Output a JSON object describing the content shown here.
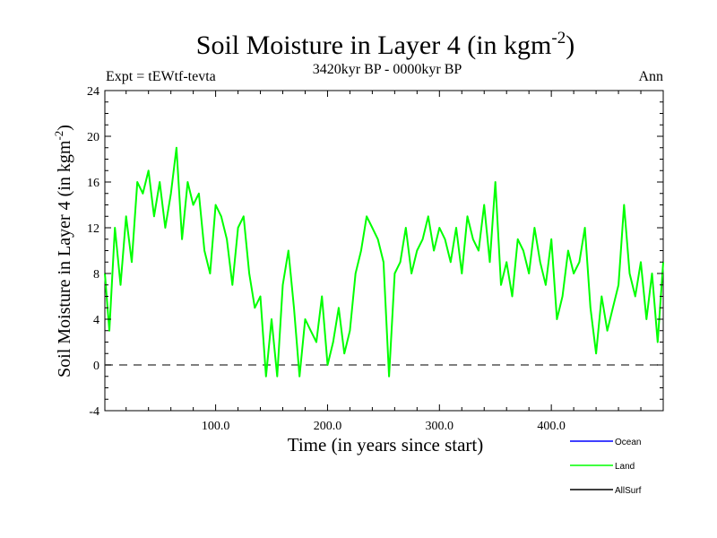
{
  "chart_data": {
    "type": "line",
    "title": "Soil Moisture in Layer 4 (in kgm",
    "title_superscript": "-2",
    "title_suffix": ")",
    "subtitle": "3420kyr BP - 0000kyr BP",
    "left_label": "Expt = tEWtf-tevta",
    "right_label": "Ann",
    "xlabel": "Time (in years since start)",
    "ylabel": "Soil Moisture in Layer 4 (in kgm",
    "ylabel_superscript": "-2",
    "ylabel_suffix": ")",
    "xlim": [
      1,
      500
    ],
    "ylim": [
      -4,
      24
    ],
    "xticks": [
      100,
      200,
      300,
      400
    ],
    "xtick_labels": [
      "100.0",
      "200.0",
      "300.0",
      "400.0"
    ],
    "yticks": [
      -4,
      0,
      4,
      8,
      12,
      16,
      20,
      24
    ],
    "ytick_labels": [
      "-4",
      "0",
      "4",
      "8",
      "12",
      "16",
      "20",
      "24"
    ],
    "reference_line": 0,
    "legend": [
      {
        "name": "Ocean",
        "color": "#0000ff"
      },
      {
        "name": "Land",
        "color": "#00ff00"
      },
      {
        "name": "AllSurf",
        "color": "#000000"
      }
    ],
    "series": [
      {
        "name": "Land",
        "color": "#00ff00",
        "x": [
          1,
          5,
          10,
          15,
          20,
          25,
          30,
          35,
          40,
          45,
          50,
          55,
          60,
          65,
          70,
          75,
          80,
          85,
          90,
          95,
          100,
          105,
          110,
          115,
          120,
          125,
          130,
          135,
          140,
          145,
          150,
          155,
          160,
          165,
          170,
          175,
          180,
          185,
          190,
          195,
          200,
          205,
          210,
          215,
          220,
          225,
          230,
          235,
          240,
          245,
          250,
          255,
          260,
          265,
          270,
          275,
          280,
          285,
          290,
          295,
          300,
          305,
          310,
          315,
          320,
          325,
          330,
          335,
          340,
          345,
          350,
          355,
          360,
          365,
          370,
          375,
          380,
          385,
          390,
          395,
          400,
          405,
          410,
          415,
          420,
          425,
          430,
          435,
          440,
          445,
          450,
          455,
          460,
          465,
          470,
          475,
          480,
          485,
          490,
          495,
          500
        ],
        "values": [
          8,
          3,
          12,
          7,
          13,
          9,
          16,
          15,
          17,
          13,
          16,
          12,
          15,
          19,
          11,
          16,
          14,
          15,
          10,
          8,
          14,
          13,
          11,
          7,
          12,
          13,
          8,
          5,
          6,
          -1,
          4,
          -1,
          7,
          10,
          5,
          -1,
          4,
          3,
          2,
          6,
          0,
          2,
          5,
          1,
          3,
          8,
          10,
          13,
          12,
          11,
          9,
          -1,
          8,
          9,
          12,
          8,
          10,
          11,
          13,
          10,
          12,
          11,
          9,
          12,
          8,
          13,
          11,
          10,
          14,
          9,
          16,
          7,
          9,
          6,
          11,
          10,
          8,
          12,
          9,
          7,
          11,
          4,
          6,
          10,
          8,
          9,
          12,
          5,
          1,
          6,
          3,
          5,
          7,
          14,
          8,
          6,
          9,
          4,
          8,
          2,
          9
        ]
      }
    ]
  }
}
